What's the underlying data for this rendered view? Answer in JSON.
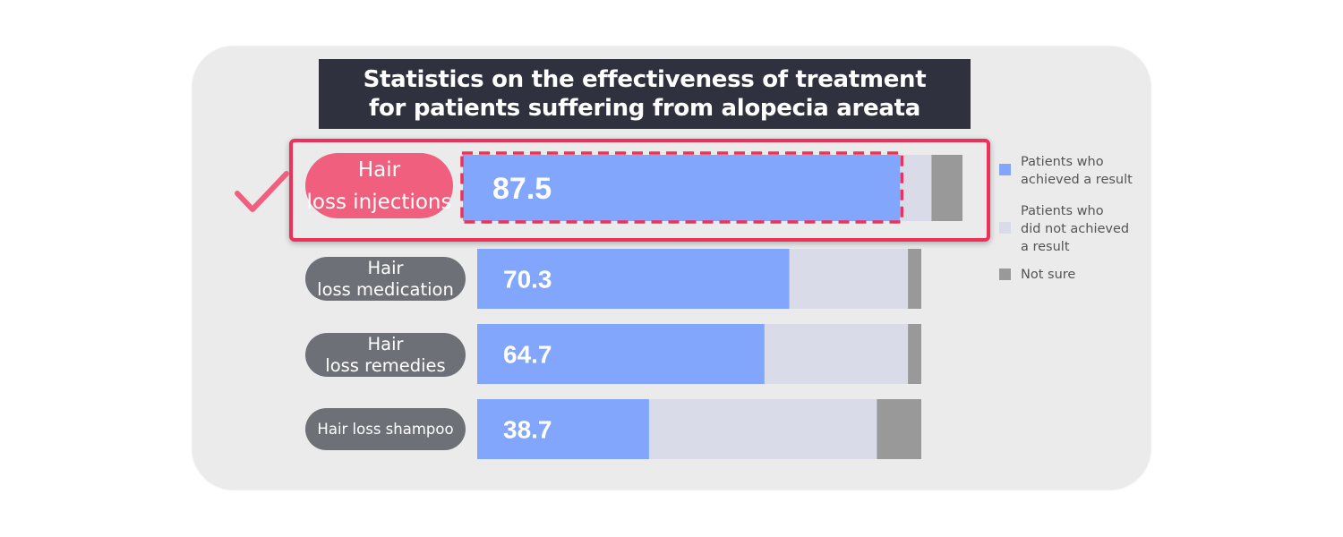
{
  "title": {
    "line1": "Statistics on the effectiveness of treatment",
    "line2": "for patients suffering from alopecia areata"
  },
  "chart_data": {
    "type": "bar",
    "stacked": true,
    "orientation": "horizontal",
    "xlim": [
      0,
      100
    ],
    "categories": [
      [
        "Hair",
        "loss injections"
      ],
      [
        "Hair",
        "loss medication"
      ],
      [
        "Hair",
        "loss remedies"
      ],
      [
        "Hair loss shampoo"
      ]
    ],
    "series": [
      {
        "name": "Patients who achieved a result",
        "values": [
          87.5,
          70.3,
          64.7,
          38.7
        ],
        "color": "#81a6fc"
      },
      {
        "name": "Patients who did not achieved a result",
        "values": [
          6.3,
          26.7,
          32.3,
          51.3
        ],
        "color": "#d9dce8"
      },
      {
        "name": "Not sure",
        "values": [
          6.2,
          3.0,
          3.0,
          10.0
        ],
        "color": "#999999"
      }
    ],
    "value_labels": [
      "87.5",
      "70.3",
      "64.7",
      "38.7"
    ],
    "highlighted_category": 0
  },
  "legend": [
    {
      "lines": [
        "Patients who",
        "achieved a result"
      ],
      "color": "#81a6fc"
    },
    {
      "lines": [
        "Patients who",
        "did not achieved",
        "a result"
      ],
      "color": "#d9dce8"
    },
    {
      "lines": [
        "Not sure"
      ],
      "color": "#999999"
    }
  ],
  "colors": {
    "highlight": "#ee3158",
    "label_gray": "#6d7077",
    "label_pink": "#f0607e",
    "title_bg": "#2f323e"
  }
}
